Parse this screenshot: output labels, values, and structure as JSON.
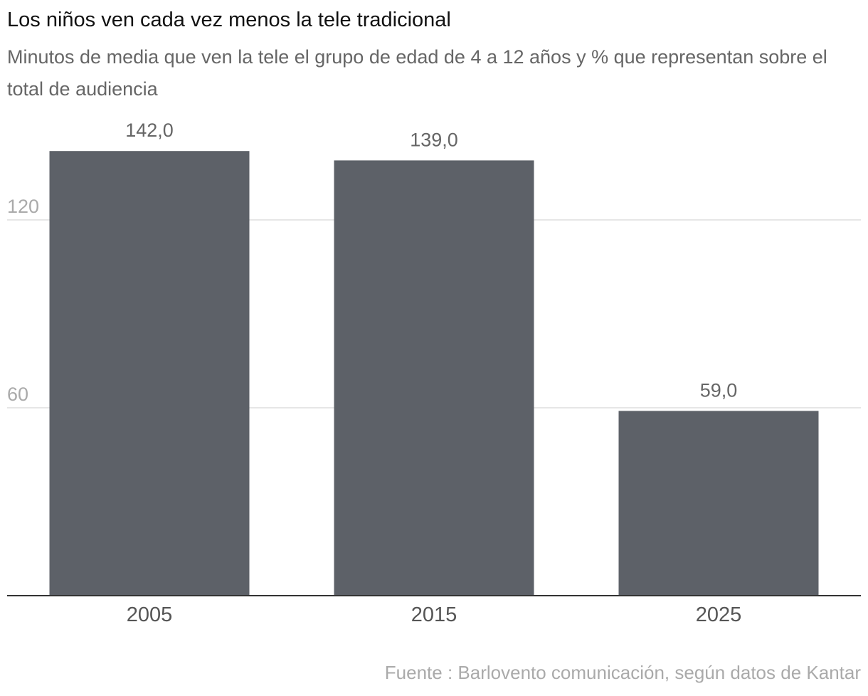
{
  "header": {
    "title": "Los niños ven cada vez menos la tele tradicional",
    "subtitle": "Minutos de media que ven la tele el grupo de edad de 4 a 12 años y % que representan sobre el total de audiencia"
  },
  "footer": {
    "source": "Fuente : Barlovento comunicación, según datos de Kantar"
  },
  "colors": {
    "bar": "#5d6168",
    "grid": "#dddddd",
    "axis": "#333333",
    "tick_label": "#aaaaaa",
    "category_label": "#555555",
    "value_label": "#666666"
  },
  "chart_data": {
    "type": "bar",
    "title": "Los niños ven cada vez menos la tele tradicional",
    "subtitle": "Minutos de media que ven la tele el grupo de edad de 4 a 12 años y % que representan sobre el total de audiencia",
    "categories": [
      "2005",
      "2015",
      "2025"
    ],
    "values": [
      142.0,
      139.0,
      59.0
    ],
    "value_labels": [
      "142,0",
      "139,0",
      "59,0"
    ],
    "xlabel": "",
    "ylabel": "",
    "ylim": [
      0,
      152
    ],
    "yticks": [
      60,
      120
    ],
    "ytick_labels": [
      "60",
      "120"
    ],
    "grid": true,
    "legend": "none"
  }
}
